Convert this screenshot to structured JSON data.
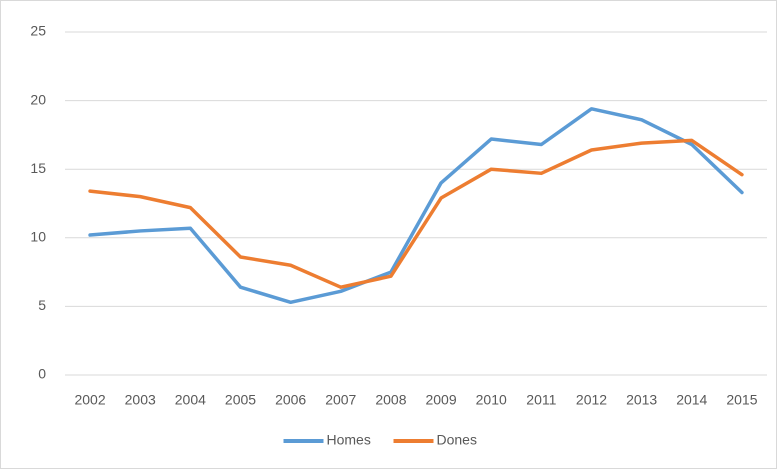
{
  "chart_data": {
    "type": "line",
    "categories": [
      "2002",
      "2003",
      "2004",
      "2005",
      "2006",
      "2007",
      "2008",
      "2009",
      "2010",
      "2011",
      "2012",
      "2013",
      "2014",
      "2015"
    ],
    "series": [
      {
        "name": "Homes",
        "color": "#5b9bd5",
        "values": [
          10.2,
          10.5,
          10.7,
          6.4,
          5.3,
          6.1,
          7.5,
          14.0,
          17.2,
          16.8,
          19.4,
          18.6,
          16.8,
          13.3
        ]
      },
      {
        "name": "Dones",
        "color": "#ed7d31",
        "values": [
          13.4,
          13.0,
          12.2,
          8.6,
          8.0,
          6.4,
          7.2,
          12.9,
          15.0,
          14.7,
          16.4,
          16.9,
          17.1,
          14.6
        ]
      }
    ],
    "ylim": [
      0,
      25
    ],
    "yticks": [
      0,
      5,
      10,
      15,
      20,
      25
    ],
    "grid": true,
    "legend": "bottom"
  }
}
